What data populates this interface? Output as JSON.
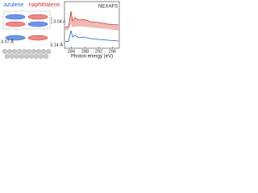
{
  "labels": {
    "left": "azulene",
    "right": "naphthalene"
  },
  "distances": [
    "3.04 Å",
    "3.07 Å",
    "3.14 Å"
  ],
  "plot": {
    "title": "NEXAFS",
    "x_axis_label": "Photon energy (eV)",
    "xlim": [
      282,
      298
    ],
    "xticks": [
      284,
      288,
      292,
      296
    ]
  }
}
